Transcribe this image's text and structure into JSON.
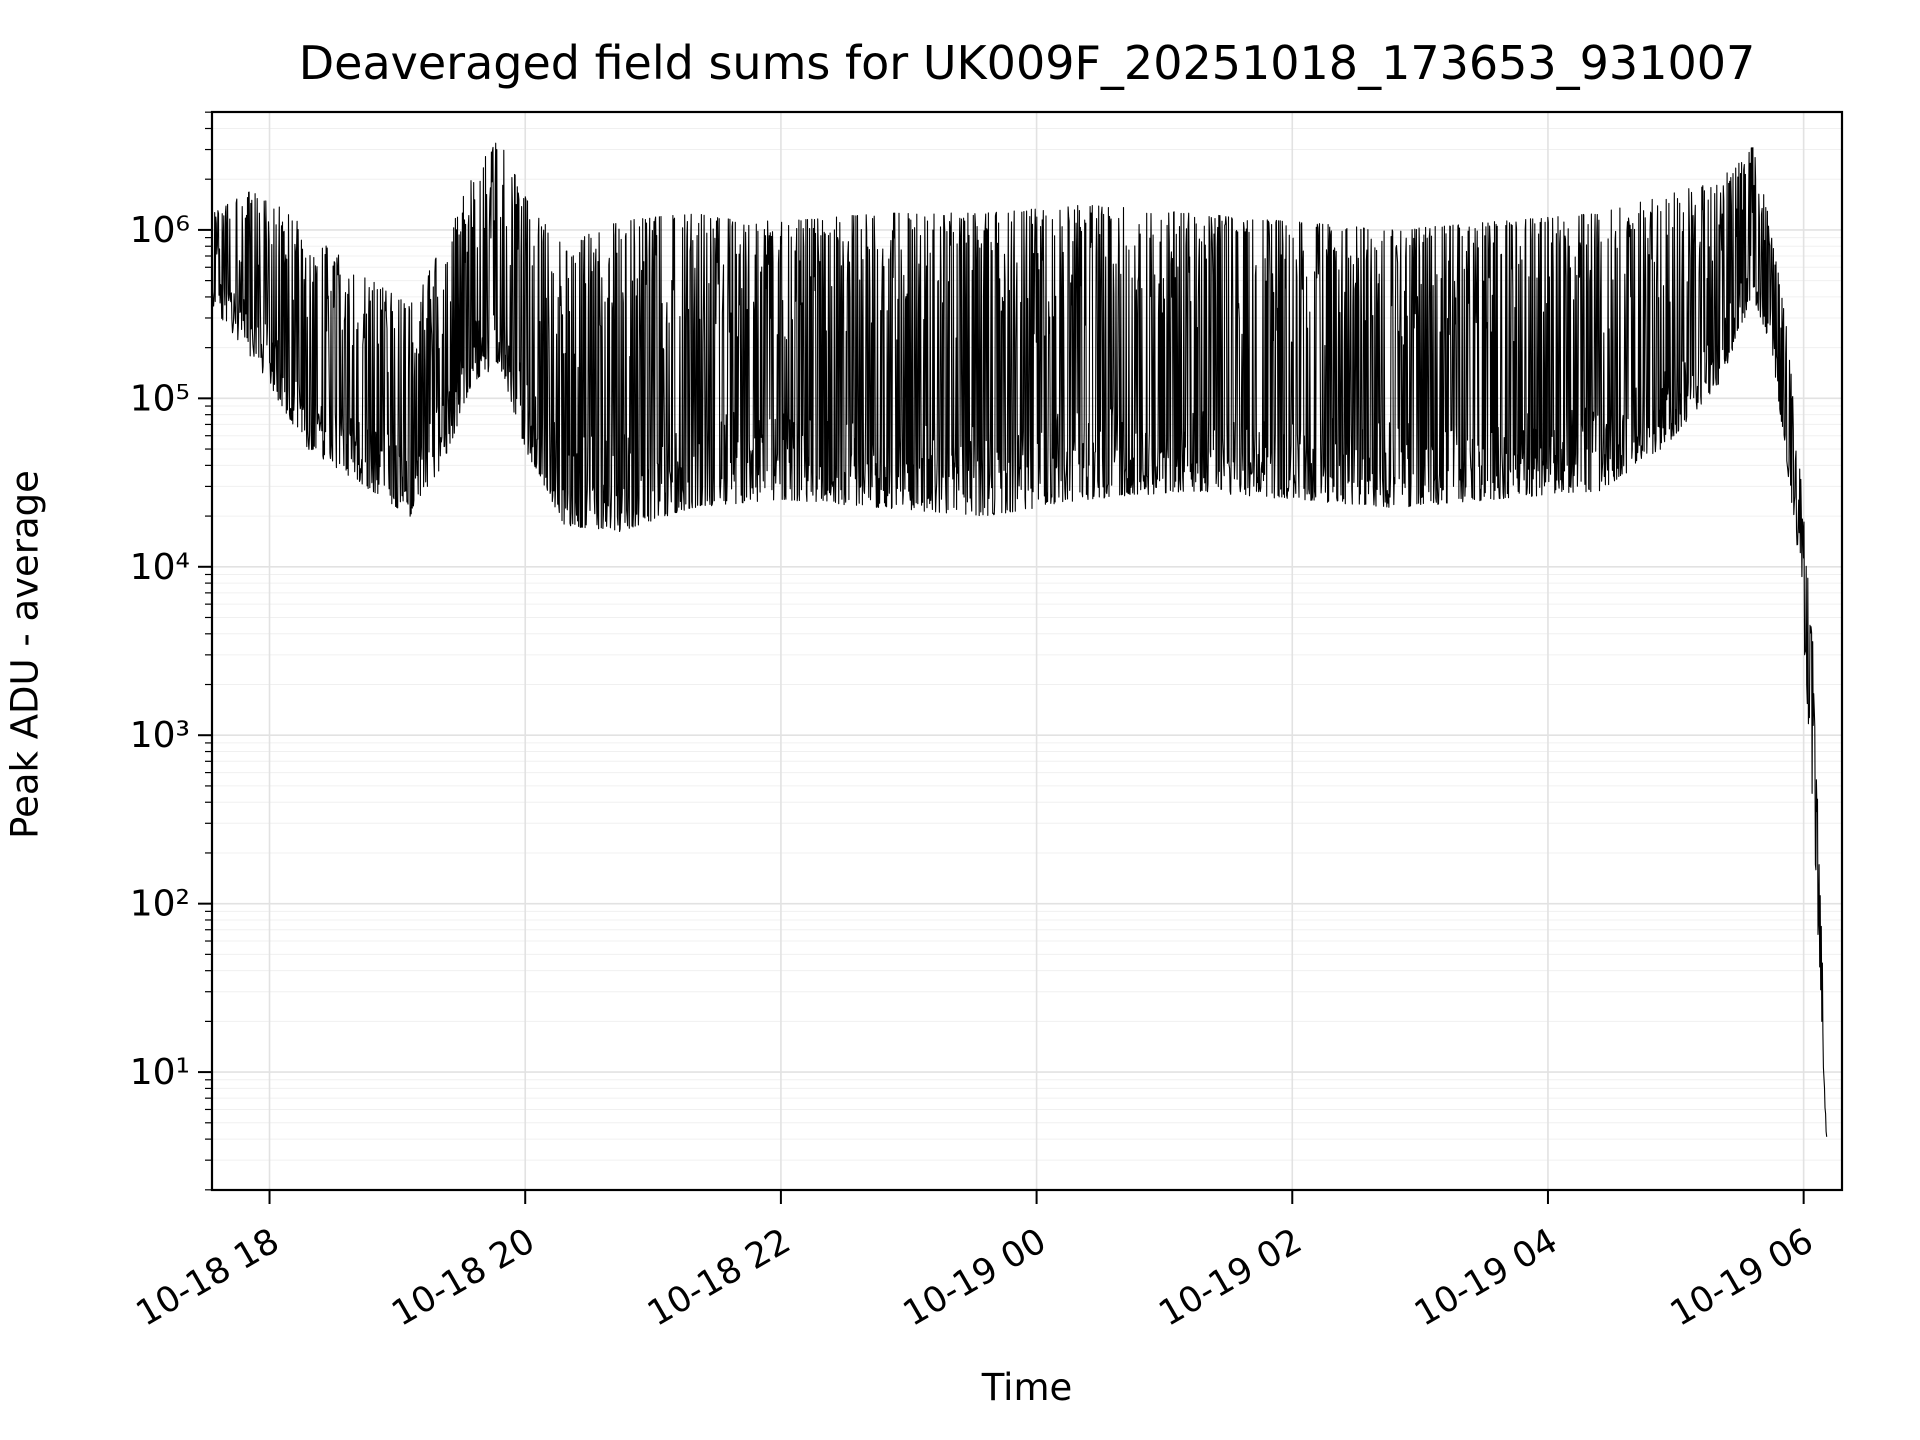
{
  "title": "Deaveraged field sums for UK009F_20251018_173653_931007",
  "chart_data": {
    "type": "line",
    "title": "Deaveraged field sums for UK009F_20251018_173653_931007",
    "xlabel": "Time",
    "ylabel": "Peak ADU - average",
    "legend": "none",
    "grid": "on",
    "y_scale": "log",
    "line_color": "#000000",
    "grid_major_color": "#e2e2e2",
    "grid_minor_color": "#f0f0f0",
    "x_range_hours": [
      17.55,
      30.3
    ],
    "y_log_range": [
      0.3,
      6.7
    ],
    "x_ticks": [
      {
        "t": 18,
        "label": "10-18 18"
      },
      {
        "t": 20,
        "label": "10-18 20"
      },
      {
        "t": 22,
        "label": "10-18 22"
      },
      {
        "t": 24,
        "label": "10-19 00"
      },
      {
        "t": 26,
        "label": "10-19 02"
      },
      {
        "t": 28,
        "label": "10-19 04"
      },
      {
        "t": 30,
        "label": "10-19 06"
      }
    ],
    "y_ticks": [
      {
        "exp": 1,
        "label": "10¹"
      },
      {
        "exp": 2,
        "label": "10²"
      },
      {
        "exp": 3,
        "label": "10³"
      },
      {
        "exp": 4,
        "label": "10⁴"
      },
      {
        "exp": 5,
        "label": "10⁵"
      },
      {
        "exp": 6,
        "label": "10⁶"
      }
    ],
    "envelope_log10": [
      {
        "t": 17.55,
        "lo": 5.55,
        "hi": 6.1
      },
      {
        "t": 17.9,
        "lo": 5.2,
        "hi": 6.25
      },
      {
        "t": 18.3,
        "lo": 4.7,
        "hi": 6.0
      },
      {
        "t": 18.7,
        "lo": 4.5,
        "hi": 5.75
      },
      {
        "t": 19.1,
        "lo": 4.3,
        "hi": 5.55
      },
      {
        "t": 19.35,
        "lo": 4.6,
        "hi": 5.9
      },
      {
        "t": 19.6,
        "lo": 5.1,
        "hi": 6.35
      },
      {
        "t": 19.8,
        "lo": 5.2,
        "hi": 6.55
      },
      {
        "t": 20.0,
        "lo": 4.7,
        "hi": 6.2
      },
      {
        "t": 20.3,
        "lo": 4.25,
        "hi": 5.9
      },
      {
        "t": 20.7,
        "lo": 4.2,
        "hi": 6.05
      },
      {
        "t": 21.3,
        "lo": 4.35,
        "hi": 6.1
      },
      {
        "t": 22.0,
        "lo": 4.4,
        "hi": 6.05
      },
      {
        "t": 22.8,
        "lo": 4.35,
        "hi": 6.1
      },
      {
        "t": 23.6,
        "lo": 4.3,
        "hi": 6.1
      },
      {
        "t": 24.4,
        "lo": 4.4,
        "hi": 6.15
      },
      {
        "t": 25.2,
        "lo": 4.45,
        "hi": 6.1
      },
      {
        "t": 26.0,
        "lo": 4.4,
        "hi": 6.05
      },
      {
        "t": 26.8,
        "lo": 4.35,
        "hi": 6.0
      },
      {
        "t": 27.6,
        "lo": 4.4,
        "hi": 6.05
      },
      {
        "t": 28.4,
        "lo": 4.45,
        "hi": 6.1
      },
      {
        "t": 28.9,
        "lo": 4.7,
        "hi": 6.2
      },
      {
        "t": 29.35,
        "lo": 5.1,
        "hi": 6.3
      },
      {
        "t": 29.6,
        "lo": 5.6,
        "hi": 6.5
      },
      {
        "t": 29.75,
        "lo": 5.3,
        "hi": 6.0
      },
      {
        "t": 29.87,
        "lo": 4.6,
        "hi": 5.4
      },
      {
        "t": 29.97,
        "lo": 4.0,
        "hi": 4.6
      },
      {
        "t": 30.07,
        "lo": 2.6,
        "hi": 3.6
      },
      {
        "t": 30.18,
        "lo": 0.55,
        "hi": 0.8
      }
    ],
    "noise_seed": 7,
    "n_points": 3000,
    "spike_probability": 0.42
  }
}
